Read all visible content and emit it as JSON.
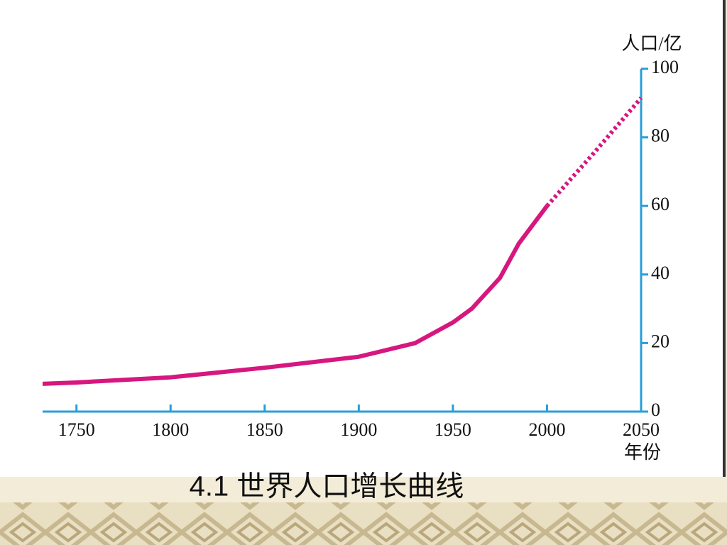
{
  "chart_data": {
    "type": "line",
    "caption": "4.1 世界人口增长曲线",
    "ylabel": "人口/亿",
    "xlabel": "年份",
    "x": [
      1732,
      1750,
      1800,
      1850,
      1900,
      1930,
      1950,
      1960,
      1975,
      1985,
      2000,
      2025,
      2050
    ],
    "series": [
      {
        "color": "#d6177f",
        "line_style": "solid",
        "values": [
          8.1,
          8.5,
          10,
          12.8,
          16,
          20,
          26,
          30,
          39,
          49,
          60,
          null,
          null
        ]
      },
      {
        "color": "#d6177f",
        "line_style": "dotted",
        "values": [
          null,
          null,
          null,
          null,
          null,
          null,
          null,
          null,
          null,
          null,
          60,
          75.5,
          91.5
        ]
      }
    ],
    "xlim": [
      1732,
      2050
    ],
    "xticks": [
      1750,
      1800,
      1850,
      1900,
      1950,
      2000,
      2050
    ],
    "ylim": [
      0,
      100
    ],
    "yticks": [
      0,
      20,
      40,
      60,
      80,
      100
    ],
    "axis_color": "#2a9ed8"
  }
}
